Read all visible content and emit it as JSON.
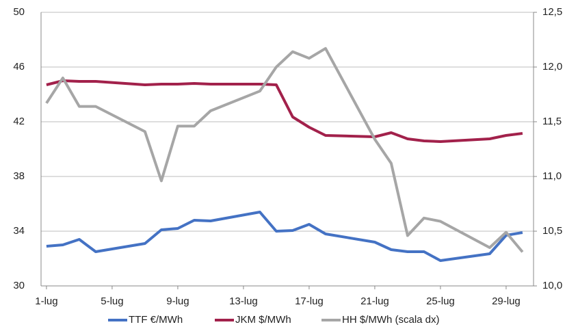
{
  "chart_data": {
    "type": "line",
    "x": [
      1,
      2,
      3,
      4,
      7,
      8,
      9,
      10,
      11,
      14,
      15,
      16,
      17,
      18,
      21,
      22,
      23,
      24,
      25,
      28,
      29,
      30
    ],
    "xlim": [
      0.67,
      30.67
    ],
    "xticks": [
      {
        "value": 1,
        "label": "1-lug"
      },
      {
        "value": 5,
        "label": "5-lug"
      },
      {
        "value": 9,
        "label": "9-lug"
      },
      {
        "value": 13,
        "label": "13-lug"
      },
      {
        "value": 17,
        "label": "17-lug"
      },
      {
        "value": 21,
        "label": "21-lug"
      },
      {
        "value": 25,
        "label": "25-lug"
      },
      {
        "value": 29,
        "label": "29-lug"
      }
    ],
    "ylim": [
      30,
      50
    ],
    "yticks": [
      30,
      34,
      38,
      42,
      46,
      50
    ],
    "y2lim": [
      10,
      12.5
    ],
    "y2ticks": [
      {
        "value": 10,
        "label": "10,0"
      },
      {
        "value": 10.5,
        "label": "10,5"
      },
      {
        "value": 11,
        "label": "11,0"
      },
      {
        "value": 11.5,
        "label": "11,5"
      },
      {
        "value": 12,
        "label": "12,0"
      },
      {
        "value": 12.5,
        "label": "12,5"
      }
    ],
    "grid": true,
    "legend": "bottom",
    "series": [
      {
        "name": "TTF €/MWh",
        "color": "#4472c4",
        "values": [
          32.9,
          33.0,
          33.4,
          32.5,
          33.1,
          34.1,
          34.2,
          34.8,
          34.75,
          35.4,
          34.0,
          34.05,
          34.5,
          33.8,
          33.2,
          32.65,
          32.5,
          32.5,
          31.85,
          32.35,
          33.7,
          33.9
        ]
      },
      {
        "name": "JKM $/MWh",
        "color": "#a2214b",
        "values": [
          44.7,
          45.0,
          44.95,
          44.95,
          44.7,
          44.75,
          44.75,
          44.8,
          44.75,
          44.75,
          44.7,
          42.35,
          41.6,
          41.0,
          40.9,
          41.2,
          40.75,
          40.6,
          40.55,
          40.75,
          41.0,
          41.15
        ]
      },
      {
        "name": "HH $/MWh (scala dx)",
        "color": "#a6a6a6",
        "axis": "y2",
        "values": [
          11.67,
          11.9,
          11.64,
          11.64,
          11.41,
          10.96,
          11.46,
          11.46,
          11.6,
          11.78,
          12.0,
          12.14,
          12.08,
          12.17,
          11.34,
          11.12,
          10.46,
          10.62,
          10.59,
          10.35,
          10.49,
          10.31
        ]
      }
    ]
  }
}
